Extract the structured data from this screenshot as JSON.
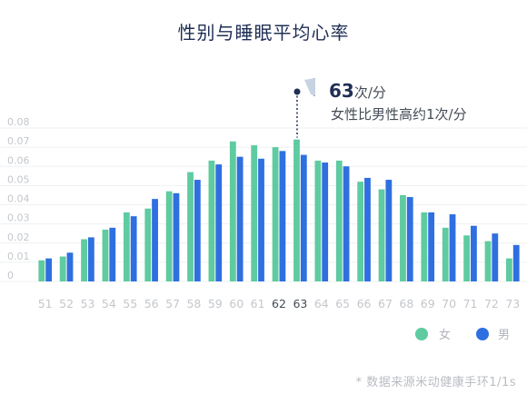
{
  "chart_data": {
    "type": "bar",
    "title": "性别与睡眠平均心率",
    "categories": [
      "51",
      "52",
      "53",
      "54",
      "55",
      "56",
      "57",
      "58",
      "59",
      "60",
      "61",
      "62",
      "63",
      "64",
      "65",
      "66",
      "67",
      "68",
      "69",
      "70",
      "71",
      "72",
      "73"
    ],
    "highlighted_categories": [
      "62",
      "63"
    ],
    "series": [
      {
        "name": "女",
        "color": "#5ecba0",
        "values": [
          0.011,
          0.013,
          0.022,
          0.027,
          0.036,
          0.038,
          0.047,
          0.057,
          0.063,
          0.073,
          0.071,
          0.07,
          0.074,
          0.063,
          0.063,
          0.052,
          0.048,
          0.045,
          0.036,
          0.028,
          0.024,
          0.021,
          0.012
        ]
      },
      {
        "name": "男",
        "color": "#2f6fe0",
        "values": [
          0.012,
          0.015,
          0.023,
          0.028,
          0.034,
          0.043,
          0.046,
          0.053,
          0.061,
          0.065,
          0.064,
          0.068,
          0.066,
          0.062,
          0.06,
          0.054,
          0.053,
          0.044,
          0.036,
          0.035,
          0.029,
          0.025,
          0.019
        ]
      }
    ],
    "ylim": [
      0,
      0.08
    ],
    "yticks": [
      "0",
      "0.01",
      "0.02",
      "0.03",
      "0.04",
      "0.05",
      "0.06",
      "0.07",
      "0.08"
    ],
    "grid": true,
    "legend_position": "bottom-right",
    "annotation": {
      "category": "63",
      "value": "63",
      "unit": "次/分",
      "text": "女性比男性高约1次/分"
    }
  },
  "source_note": "* 数据来源米动健康手环1/1s"
}
